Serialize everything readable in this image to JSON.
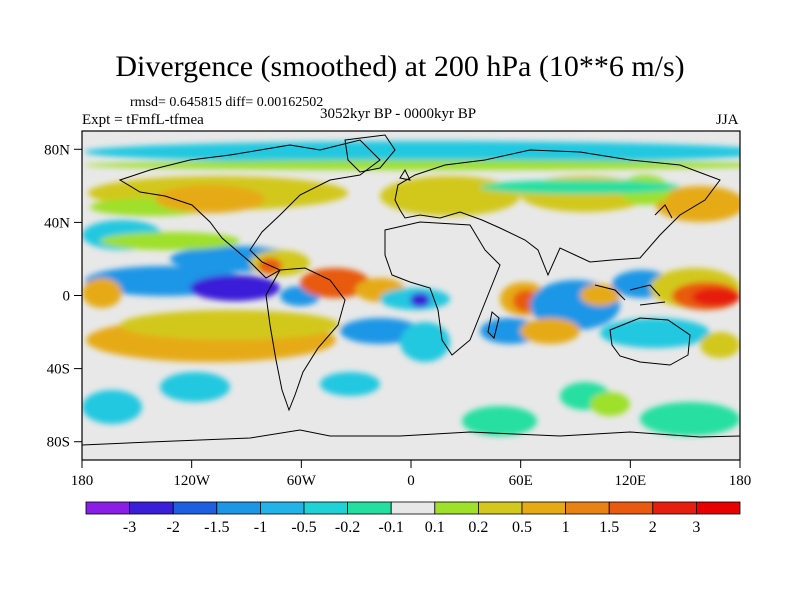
{
  "title": "Divergence (smoothed) at 200 hPa (10**6 m/s)",
  "stats": "rmsd= 0.645815 diff= 0.00162502",
  "experiment": "Expt = tFmfL-tfmea",
  "period": "3052kyr BP - 0000kyr BP",
  "season": "JJA",
  "axes": {
    "lat_ticks": [
      {
        "label": "80N",
        "lat": 80
      },
      {
        "label": "40N",
        "lat": 40
      },
      {
        "label": "0",
        "lat": 0
      },
      {
        "label": "40S",
        "lat": -40
      },
      {
        "label": "80S",
        "lat": -80
      }
    ],
    "lon_ticks": [
      {
        "label": "180",
        "lon": -180
      },
      {
        "label": "120W",
        "lon": -120
      },
      {
        "label": "60W",
        "lon": -60
      },
      {
        "label": "0",
        "lon": 0
      },
      {
        "label": "60E",
        "lon": 60
      },
      {
        "label": "120E",
        "lon": 120
      },
      {
        "label": "180",
        "lon": 180
      }
    ],
    "lat_range": [
      -90,
      90
    ],
    "lon_range": [
      -180,
      180
    ]
  },
  "colorbar": {
    "labels": [
      "-3",
      "-2",
      "-1.5",
      "-1",
      "-0.5",
      "-0.2",
      "-0.1",
      "0.1",
      "0.2",
      "0.5",
      "1",
      "1.5",
      "2",
      "3"
    ],
    "colors": [
      "#8a1ee6",
      "#3b1fd8",
      "#1e5fe0",
      "#1e96e6",
      "#22b4e8",
      "#1fd2d6",
      "#25dfa0",
      "#e8e8e8",
      "#9ee02a",
      "#d2c81e",
      "#e6aa14",
      "#e88214",
      "#e85a10",
      "#e61e10",
      "#e60000"
    ]
  },
  "field_palette": {
    "background": "#e8e8e8",
    "strong_neg": "#3b1fd8",
    "neg": "#1e96e6",
    "weak_neg": "#22c8e0",
    "weak_neg2": "#25dfa0",
    "weak_pos": "#9ee02a",
    "pos": "#d2c81e",
    "pos2": "#e6aa14",
    "strong_pos": "#e85a10",
    "very_strong_pos": "#e61e10"
  }
}
